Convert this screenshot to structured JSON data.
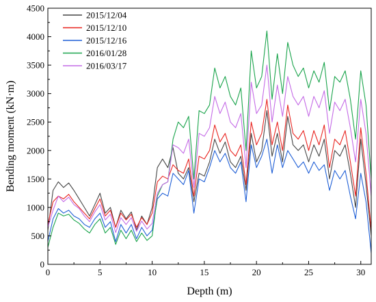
{
  "chart_data": {
    "type": "line",
    "title": "",
    "xlabel": "Depth (m)",
    "ylabel": "Bending moment (kN·m)",
    "xlim": [
      0,
      31
    ],
    "ylim": [
      0,
      4500
    ],
    "xticks": [
      0,
      5,
      10,
      15,
      20,
      25,
      30
    ],
    "yticks": [
      0,
      500,
      1000,
      1500,
      2000,
      2500,
      3000,
      3500,
      4000,
      4500
    ],
    "grid": false,
    "legend_position": "top-left",
    "x": [
      0,
      0.5,
      1,
      1.5,
      2,
      2.5,
      3,
      3.5,
      4,
      4.5,
      5,
      5.5,
      6,
      6.5,
      7,
      7.5,
      8,
      8.5,
      9,
      9.5,
      10,
      10.5,
      11,
      11.5,
      12,
      12.5,
      13,
      13.5,
      14,
      14.5,
      15,
      15.5,
      16,
      16.5,
      17,
      17.5,
      18,
      18.5,
      19,
      19.5,
      20,
      20.5,
      21,
      21.5,
      22,
      22.5,
      23,
      23.5,
      24,
      24.5,
      25,
      25.5,
      26,
      26.5,
      27,
      27.5,
      28,
      28.5,
      29,
      29.5,
      30,
      30.5,
      31
    ],
    "series": [
      {
        "name": "2015/12/04",
        "color": "#444444",
        "values": [
          600,
          1300,
          1450,
          1350,
          1430,
          1300,
          1150,
          1000,
          850,
          1050,
          1250,
          900,
          1000,
          650,
          950,
          800,
          920,
          600,
          850,
          700,
          1000,
          1700,
          1850,
          1700,
          2050,
          1600,
          1500,
          1700,
          1100,
          1600,
          1550,
          1800,
          2200,
          1950,
          2150,
          1800,
          1700,
          1900,
          1300,
          2300,
          1800,
          2000,
          2700,
          1900,
          2300,
          1800,
          2600,
          2100,
          2000,
          2100,
          1800,
          2100,
          1900,
          2200,
          1500,
          2000,
          1900,
          2100,
          1600,
          1000,
          2200,
          1400,
          500
        ]
      },
      {
        "name": "2015/12/10",
        "color": "#e8231f",
        "values": [
          700,
          1100,
          1200,
          1150,
          1230,
          1100,
          1000,
          900,
          800,
          980,
          1150,
          850,
          950,
          650,
          900,
          780,
          880,
          650,
          820,
          700,
          900,
          1450,
          1550,
          1500,
          1750,
          1650,
          1600,
          1850,
          1200,
          1900,
          1850,
          2000,
          2450,
          2150,
          2300,
          2000,
          1900,
          2100,
          1400,
          2500,
          2100,
          2300,
          2900,
          2100,
          2500,
          2000,
          2800,
          2300,
          2200,
          2350,
          2000,
          2350,
          2100,
          2450,
          1700,
          2200,
          2100,
          2350,
          1800,
          1200,
          2400,
          1600,
          600
        ]
      },
      {
        "name": "2015/12/16",
        "color": "#1f5fd6",
        "values": [
          400,
          800,
          980,
          900,
          950,
          850,
          800,
          700,
          650,
          800,
          900,
          650,
          750,
          400,
          700,
          550,
          700,
          450,
          650,
          500,
          600,
          1150,
          1250,
          1200,
          1600,
          1500,
          1400,
          1650,
          900,
          1500,
          1450,
          1700,
          2000,
          1800,
          1950,
          1700,
          1600,
          1800,
          1100,
          2100,
          1700,
          1900,
          2200,
          1600,
          2100,
          1700,
          2000,
          1850,
          1700,
          1800,
          1600,
          1800,
          1650,
          1750,
          1300,
          1650,
          1500,
          1650,
          1200,
          800,
          1600,
          1100,
          200
        ]
      },
      {
        "name": "2016/01/28",
        "color": "#18a34a",
        "values": [
          300,
          650,
          900,
          850,
          880,
          780,
          720,
          620,
          550,
          700,
          800,
          550,
          650,
          350,
          600,
          450,
          600,
          400,
          550,
          420,
          500,
          1200,
          1400,
          1450,
          2200,
          2500,
          2400,
          2600,
          1500,
          2700,
          2650,
          2800,
          3450,
          3100,
          3300,
          2950,
          2800,
          3100,
          2000,
          3750,
          3100,
          3300,
          4100,
          2900,
          3700,
          3000,
          3900,
          3500,
          3300,
          3450,
          3100,
          3400,
          3200,
          3550,
          2700,
          3300,
          3200,
          3400,
          2900,
          2200,
          3400,
          2800,
          1500
        ]
      },
      {
        "name": "2016/03/17",
        "color": "#c46ae6",
        "values": [
          650,
          950,
          1200,
          1100,
          1180,
          1050,
          980,
          850,
          750,
          920,
          1050,
          780,
          880,
          560,
          820,
          700,
          820,
          580,
          760,
          620,
          720,
          1250,
          1400,
          1450,
          2100,
          2050,
          1950,
          2200,
          1350,
          2300,
          2250,
          2400,
          2950,
          2650,
          2850,
          2500,
          2400,
          2650,
          1700,
          3200,
          2650,
          2800,
          3500,
          2500,
          3150,
          2600,
          3300,
          2950,
          2800,
          2950,
          2600,
          2950,
          2750,
          3050,
          2300,
          2850,
          2700,
          2900,
          2400,
          1800,
          2900,
          2300,
          1200
        ]
      }
    ]
  }
}
